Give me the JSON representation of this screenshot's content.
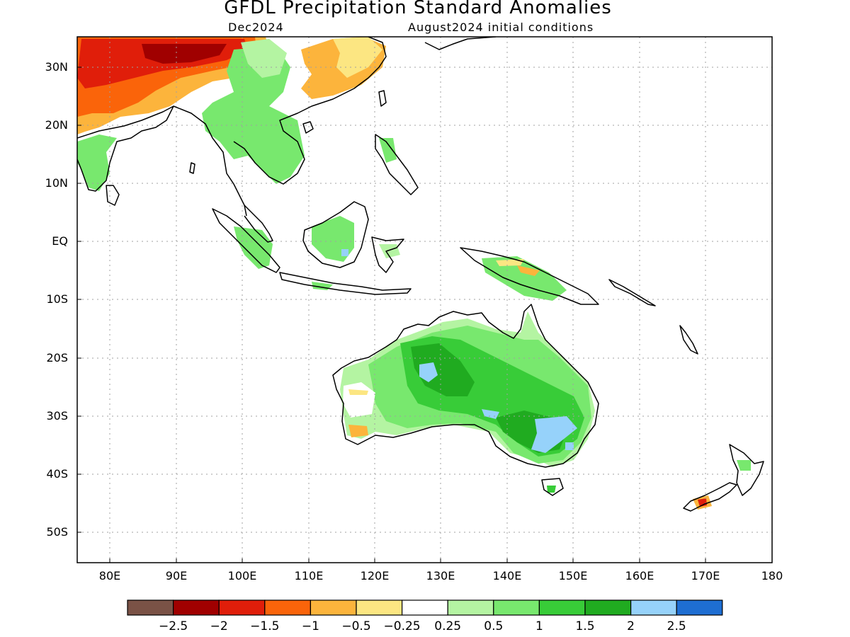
{
  "title": "GFDL Precipitation Standard Anomalies",
  "subtitle_left": "Dec2024",
  "subtitle_right": "August2024 initial conditions",
  "axes": {
    "lat_labels": [
      "30N",
      "20N",
      "10N",
      "EQ",
      "10S",
      "20S",
      "30S",
      "40S",
      "50S"
    ],
    "lon_labels": [
      "80E",
      "90E",
      "100E",
      "110E",
      "120E",
      "130E",
      "140E",
      "150E",
      "160E",
      "170E",
      "180"
    ],
    "lon_range": [
      75,
      180
    ],
    "lat_range": [
      -55,
      35
    ]
  },
  "colorbar": {
    "labels": [
      "-2.5",
      "-2",
      "-1.5",
      "-1",
      "-0.5",
      "-0.25",
      "0.25",
      "0.5",
      "1",
      "1.5",
      "2",
      "2.5"
    ],
    "colors": [
      "#7a5246",
      "#a00000",
      "#e01e0a",
      "#fa640a",
      "#fcb43c",
      "#fce682",
      "#ffffff",
      "#b4f4a2",
      "#78e86e",
      "#38cc38",
      "#20ab20",
      "#96d2fa",
      "#1e6ed2"
    ]
  },
  "regions": [
    {
      "name": "north-india-tibet-dry",
      "category": "-1.5",
      "color": "#e01e0a"
    },
    {
      "name": "tibet-dry",
      "category": "-1",
      "color": "#fa640a"
    },
    {
      "name": "southeast-asia-wet",
      "category": "1",
      "color": "#78e86e"
    },
    {
      "name": "east-china-dry",
      "category": "-0.5",
      "color": "#fcb43c"
    },
    {
      "name": "australia-wet",
      "category": "1.5",
      "color": "#38cc38"
    },
    {
      "name": "southeast-australia-very-wet",
      "category": "2",
      "color": "#96d2fa"
    },
    {
      "name": "new-zealand-dry",
      "category": "-1.5",
      "color": "#e01e0a"
    }
  ]
}
